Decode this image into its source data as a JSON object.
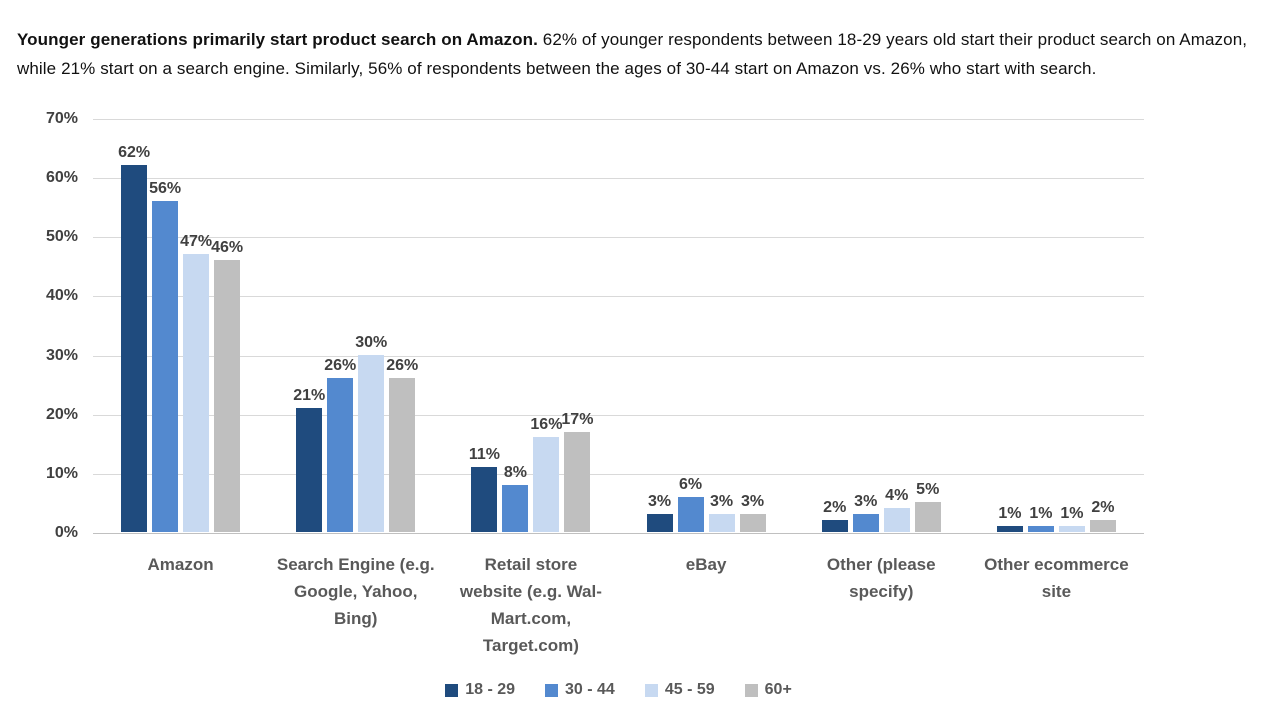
{
  "caption": {
    "bold": "Younger generations primarily start product search on Amazon.",
    "rest": " 62% of younger respondents between 18-29 years old start their product search on Amazon, while 21% start on a search engine. Similarly, 56% of respondents between the ages of 30-44 start on Amazon vs. 26% who start with search."
  },
  "chart_data": {
    "type": "bar",
    "title": "",
    "categories": [
      "Amazon",
      "Search Engine (e.g. Google, Yahoo, Bing)",
      "Retail store website (e.g. Wal-Mart.com, Target.com)",
      "eBay",
      "Other (please specify)",
      "Other ecommerce site"
    ],
    "category_label_lines": [
      [
        "Amazon"
      ],
      [
        "Search Engine (e.g.",
        "Google, Yahoo,",
        "Bing)"
      ],
      [
        "Retail store",
        "website (e.g. Wal-",
        "Mart.com,",
        "Target.com)"
      ],
      [
        "eBay"
      ],
      [
        "Other (please",
        "specify)"
      ],
      [
        "Other ecommerce",
        "site"
      ]
    ],
    "series": [
      {
        "name": "18 - 29",
        "color": "#1F4B7E",
        "values": [
          62,
          21,
          11,
          3,
          2,
          1
        ]
      },
      {
        "name": "30 - 44",
        "color": "#5389CF",
        "values": [
          56,
          26,
          8,
          6,
          3,
          1
        ]
      },
      {
        "name": "45 - 59",
        "color": "#C7D9F1",
        "values": [
          47,
          30,
          16,
          3,
          4,
          1
        ]
      },
      {
        "name": "60+",
        "color": "#BFBFBF",
        "values": [
          46,
          26,
          17,
          3,
          5,
          2
        ]
      }
    ],
    "ylim": [
      0,
      70
    ],
    "ytick_step": 10,
    "value_suffix": "%",
    "grid": "horizontal",
    "legend_position": "bottom"
  },
  "colors": {
    "gridline": "#D9D9D9",
    "axis_line": "#C0C0C0",
    "tick_label": "#404040",
    "value_label": "#404040",
    "category_label": "#595959",
    "legend_label": "#595959"
  }
}
